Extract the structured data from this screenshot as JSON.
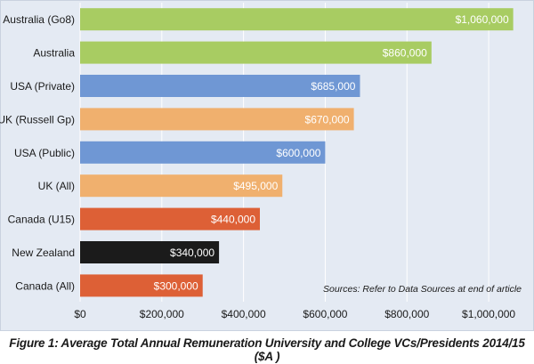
{
  "caption": "Figure 1: Average Total Annual Remuneration University and College VCs/Presidents 2014/15 ($A )",
  "colors": {
    "green": "#a8cc62",
    "blue": "#6f97d4",
    "orange": "#f0b06e",
    "red": "#dd6036",
    "black": "#1b1b1b",
    "background": "#e4eaf3",
    "gridline": "#ffffff",
    "label_text": "#ffffff",
    "axis_text": "#1a1a1a"
  },
  "chart_data": {
    "type": "bar",
    "orientation": "horizontal",
    "title": "",
    "xlabel": "",
    "ylabel": "",
    "xlim": [
      0,
      1100000
    ],
    "grid": true,
    "legend": "none",
    "note": "Sources: Refer to Data Sources at end of article",
    "categories": [
      "Australia (Go8)",
      "Australia",
      "USA (Private)",
      "UK (Russell Gp)",
      "USA (Public)",
      "UK (All)",
      "Canada (U15)",
      "New Zealand",
      "Canada (All)"
    ],
    "values": [
      1060000,
      860000,
      685000,
      670000,
      600000,
      495000,
      440000,
      340000,
      300000
    ],
    "value_labels": [
      "$1,060,000",
      "$860,000",
      "$685,000",
      "$670,000",
      "$600,000",
      "$495,000",
      "$440,000",
      "$340,000",
      "$300,000"
    ],
    "bar_colors": [
      "green",
      "green",
      "blue",
      "orange",
      "blue",
      "orange",
      "red",
      "black",
      "red"
    ],
    "x_ticks": [
      0,
      200000,
      400000,
      600000,
      800000,
      1000000
    ],
    "x_tick_labels": [
      "$0",
      "$200,000",
      "$400,000",
      "$600,000",
      "$800,000",
      "$1,000,000"
    ]
  }
}
